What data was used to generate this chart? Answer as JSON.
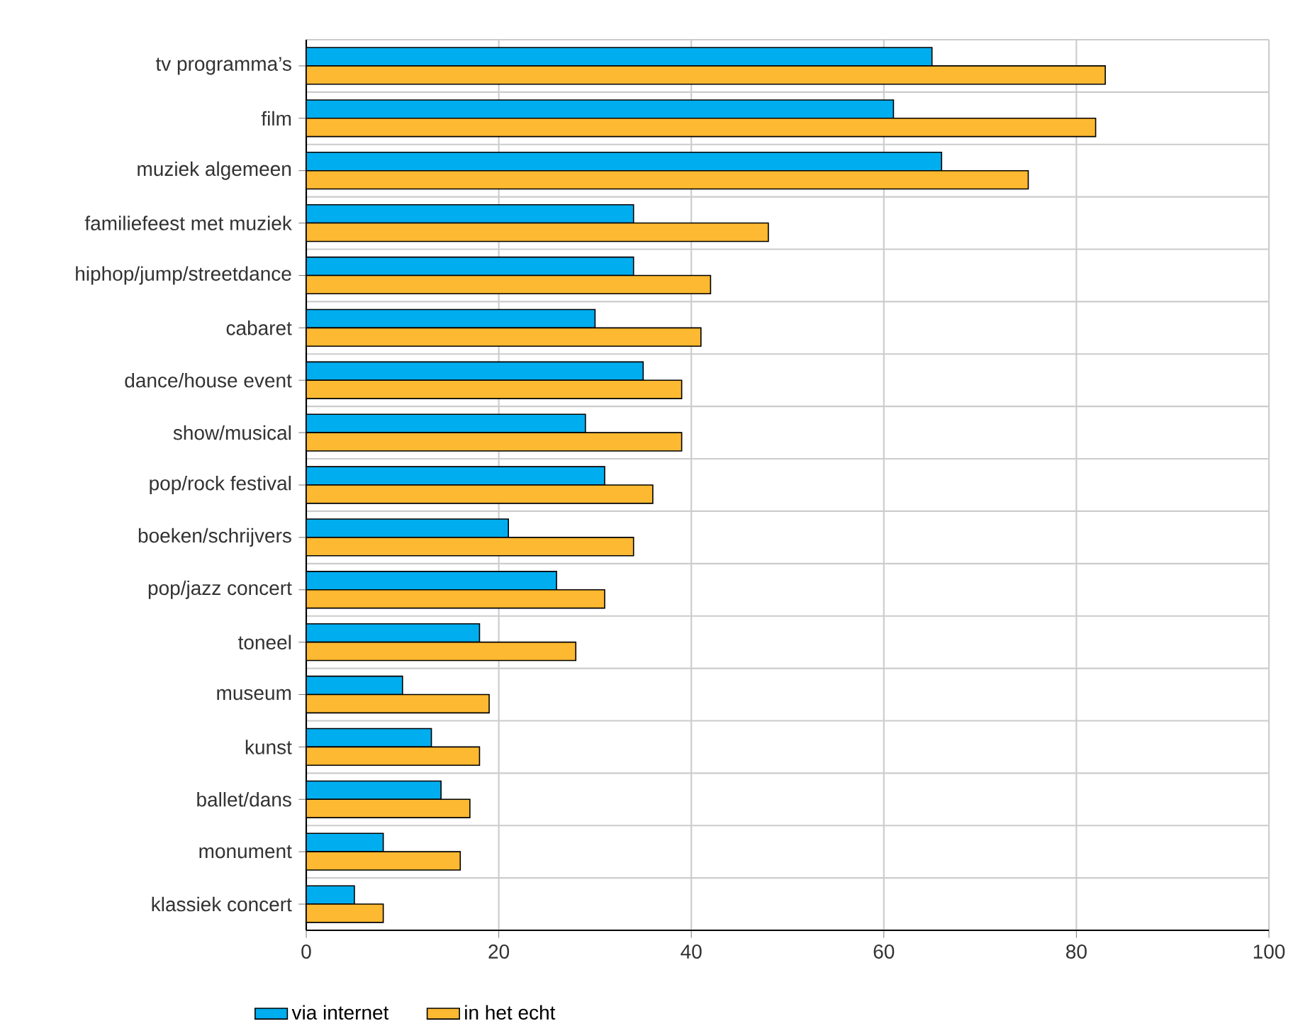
{
  "chart_data": {
    "type": "bar",
    "orientation": "horizontal",
    "categories": [
      "tv programma’s",
      "film",
      "muziek algemeen",
      "familiefeest met muziek",
      "hiphop/jump/streetdance",
      "cabaret",
      "dance/house event",
      "show/musical",
      "pop/rock festival",
      "boeken/schrijvers",
      "pop/jazz concert",
      "toneel",
      "museum",
      "kunst",
      "ballet/dans",
      "monument",
      "klassiek concert"
    ],
    "series": [
      {
        "name": "via internet",
        "color": "#00aeef",
        "values": [
          65,
          61,
          66,
          34,
          34,
          30,
          35,
          29,
          31,
          21,
          26,
          18,
          10,
          13,
          14,
          8,
          5
        ]
      },
      {
        "name": "in het echt",
        "color": "#fdb931",
        "values": [
          83,
          82,
          75,
          48,
          42,
          41,
          39,
          39,
          36,
          34,
          31,
          28,
          19,
          18,
          17,
          16,
          8
        ]
      }
    ],
    "xlim": [
      0,
      100
    ],
    "xticks": [
      0,
      20,
      40,
      60,
      80,
      100
    ],
    "grid": true,
    "legend": "bottom"
  }
}
